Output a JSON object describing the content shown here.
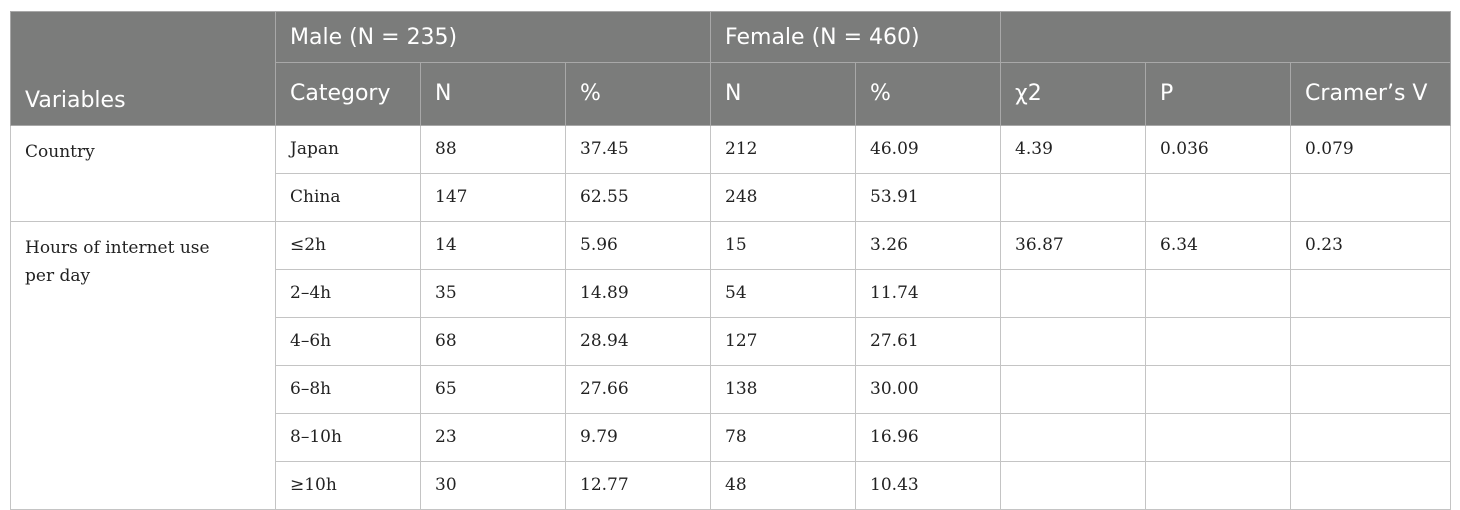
{
  "table": {
    "header_top": {
      "male_group": "Male (N = 235)",
      "female_group": "Female (N = 460)"
    },
    "header": {
      "variables": "Variables",
      "category": "Category",
      "male_n": "N",
      "male_pct": "%",
      "female_n": "N",
      "female_pct": "%",
      "chi2": "χ2",
      "p": "P",
      "cramers_v": "Cramer’s V"
    },
    "groups": [
      {
        "variable": "Country",
        "chi2": "4.39",
        "p": "0.036",
        "cramers_v": "0.079",
        "rows": [
          {
            "category": "Japan",
            "male_n": "88",
            "male_pct": "37.45",
            "female_n": "212",
            "female_pct": "46.09"
          },
          {
            "category": "China",
            "male_n": "147",
            "male_pct": "62.55",
            "female_n": "248",
            "female_pct": "53.91"
          }
        ]
      },
      {
        "variable": "Hours of internet use per day",
        "chi2": "36.87",
        "p": "6.34",
        "cramers_v": "0.23",
        "rows": [
          {
            "category": "≤2h",
            "male_n": "14",
            "male_pct": "5.96",
            "female_n": "15",
            "female_pct": "3.26"
          },
          {
            "category": "2–4h",
            "male_n": "35",
            "male_pct": "14.89",
            "female_n": "54",
            "female_pct": "11.74"
          },
          {
            "category": "4–6h",
            "male_n": "68",
            "male_pct": "28.94",
            "female_n": "127",
            "female_pct": "27.61"
          },
          {
            "category": "6–8h",
            "male_n": "65",
            "male_pct": "27.66",
            "female_n": "138",
            "female_pct": "30.00"
          },
          {
            "category": "8–10h",
            "male_n": "23",
            "male_pct": "9.79",
            "female_n": "78",
            "female_pct": "16.96"
          },
          {
            "category": "≥10h",
            "male_n": "30",
            "male_pct": "12.77",
            "female_n": "48",
            "female_pct": "10.43"
          }
        ]
      }
    ]
  }
}
